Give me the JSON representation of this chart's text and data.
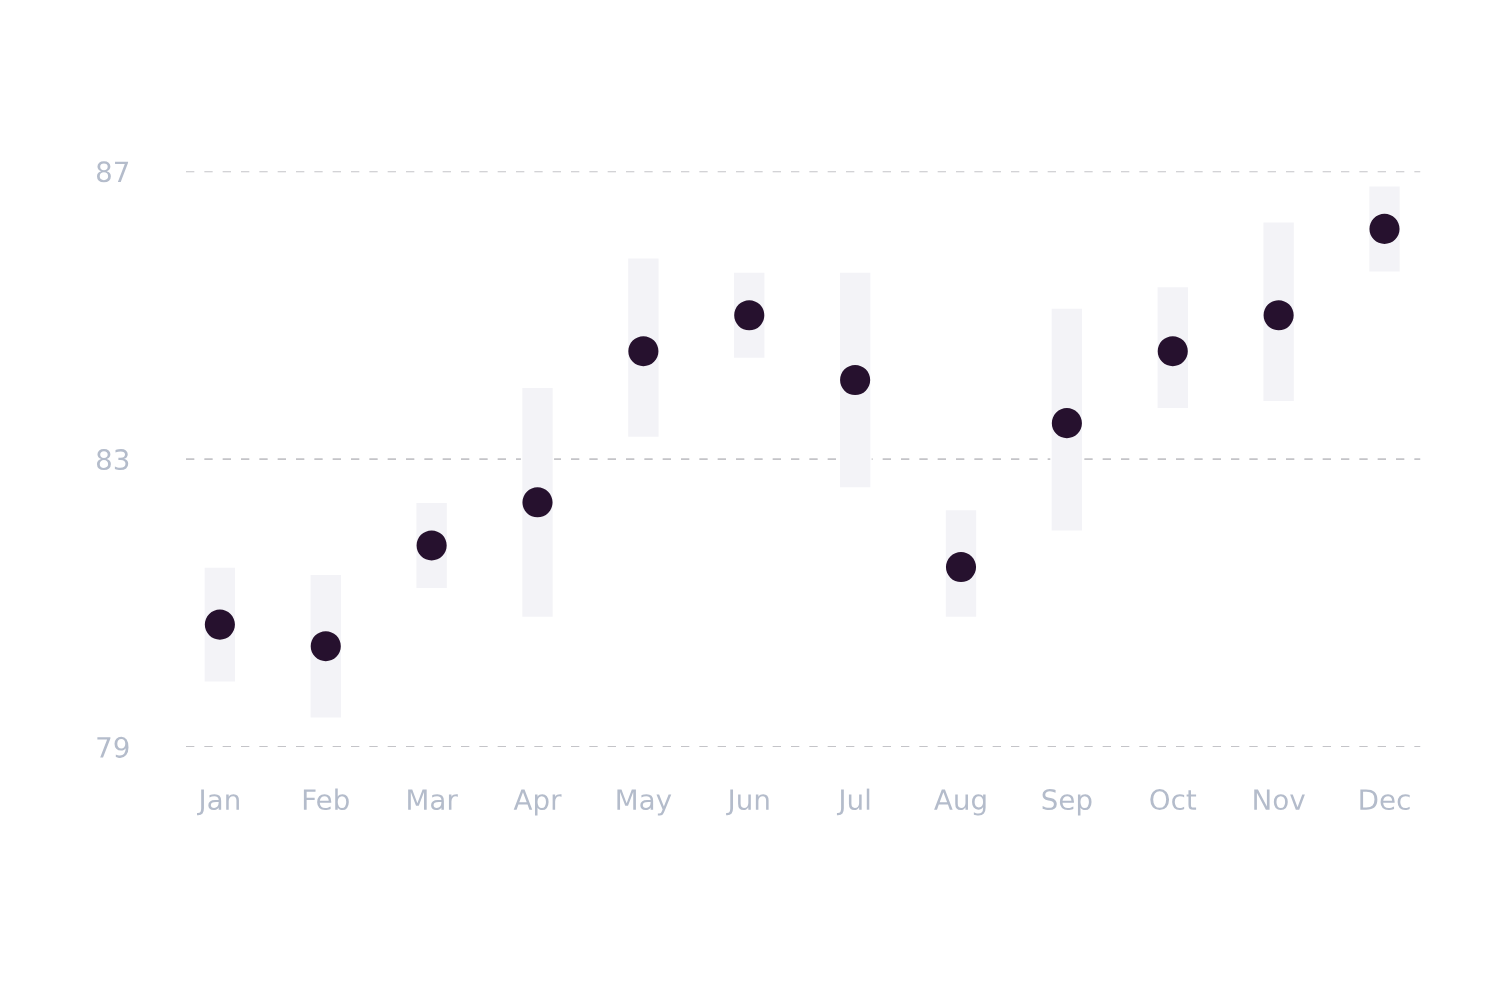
{
  "chart_data": {
    "type": "bar",
    "categories": [
      "Jan",
      "Feb",
      "Mar",
      "Apr",
      "May",
      "Jun",
      "Jul",
      "Aug",
      "Sep",
      "Oct",
      "Nov",
      "Dec"
    ],
    "series": [
      {
        "color": "#f3f3f7",
        "base": [
          79.9,
          79.4,
          81.2,
          80.8,
          83.3,
          84.4,
          82.6,
          80.8,
          82.0,
          83.7,
          83.8,
          85.6
        ],
        "values": [
          1.6,
          2.0,
          1.2,
          3.2,
          2.5,
          1.2,
          3.0,
          1.5,
          3.1,
          1.7,
          2.5,
          1.2
        ]
      },
      {
        "type": "scatter",
        "color": "#26112e",
        "x": [
          "Jan",
          "Feb",
          "Mar",
          "Apr",
          "May",
          "Jun",
          "Jul",
          "Aug",
          "Sep",
          "Oct",
          "Nov",
          "Dec"
        ],
        "values": [
          80.7,
          80.4,
          81.8,
          82.4,
          84.5,
          85.0,
          84.1,
          81.5,
          83.5,
          84.5,
          85.0,
          86.2
        ]
      }
    ],
    "ylim": [
      79,
      87
    ],
    "yticks": [
      79,
      83,
      87
    ],
    "grid": "y",
    "marker": "circle"
  }
}
